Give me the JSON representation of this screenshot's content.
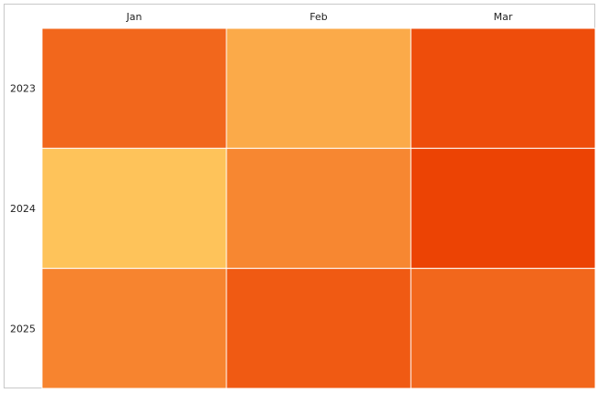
{
  "chart_data": {
    "type": "heatmap",
    "title": "",
    "xlabel": "",
    "ylabel": "",
    "x_categories": [
      "Jan",
      "Feb",
      "Mar"
    ],
    "y_categories": [
      "2023",
      "2024",
      "2025"
    ],
    "x_axis_position": "top",
    "legend": "none",
    "grid": false,
    "color_scale": {
      "low": "#fec35a",
      "mid": "#f7842f",
      "high": "#ec4304"
    },
    "values": [
      [
        0.72,
        0.2,
        0.92
      ],
      [
        0.0,
        0.48,
        1.0
      ],
      [
        0.5,
        0.82,
        0.72
      ]
    ]
  }
}
